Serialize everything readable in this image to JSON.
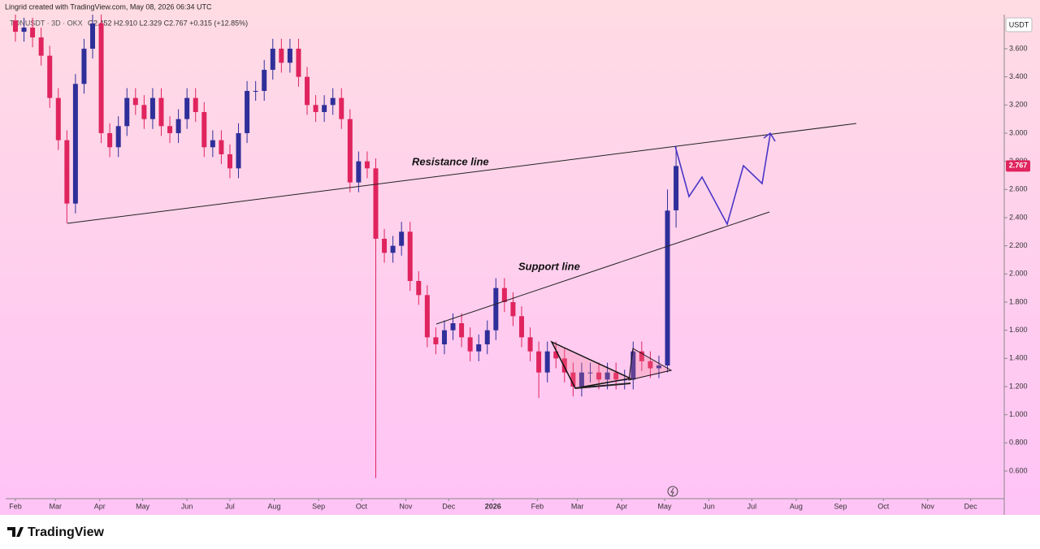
{
  "header": "Lingrid created with TradingView.com, May 08, 2026 06:34 UTC",
  "watermark": "TradingView",
  "chart_data": {
    "type": "candlestick",
    "title": "TONUSDT · 3D · OKX",
    "ohlc_label": "O2.452 H2.910 L2.329 C2.767 +0.315 (+12.85%)",
    "currency": "USDT",
    "annotations": [
      "Resistance line",
      "Support line"
    ],
    "up_color": "#2f2f9a",
    "down_color": "#e0245e",
    "grid": false,
    "x": [
      0,
      6,
      12,
      18,
      24,
      30,
      36,
      42,
      48,
      54,
      60,
      66,
      72,
      78,
      84,
      90,
      96,
      102,
      108,
      114,
      120,
      126,
      132,
      138,
      144,
      150,
      156,
      162,
      168,
      174,
      180,
      186,
      192,
      198,
      204,
      210,
      216,
      222,
      228,
      234,
      240,
      246,
      252,
      258,
      264,
      270,
      276,
      282,
      288,
      294,
      300,
      306,
      312,
      318,
      324,
      330,
      336,
      342,
      348,
      354,
      360,
      366,
      372,
      378,
      384,
      390,
      396,
      402,
      408,
      414,
      420,
      426,
      432,
      438,
      444,
      450,
      456,
      462
    ],
    "open": [
      3.8,
      3.72,
      3.75,
      3.68,
      3.55,
      3.25,
      2.95,
      2.5,
      3.35,
      3.6,
      3.78,
      3.0,
      2.9,
      3.05,
      3.25,
      3.2,
      3.1,
      3.25,
      3.05,
      3.0,
      3.1,
      3.25,
      3.15,
      2.9,
      2.95,
      2.85,
      2.75,
      3.0,
      3.3,
      3.3,
      3.45,
      3.6,
      3.5,
      3.6,
      3.4,
      3.2,
      3.15,
      3.2,
      3.25,
      3.1,
      2.65,
      2.8,
      2.75,
      2.25,
      2.15,
      2.2,
      2.3,
      1.95,
      1.85,
      1.55,
      1.5,
      1.6,
      1.65,
      1.55,
      1.45,
      1.5,
      1.6,
      1.9,
      1.8,
      1.7,
      1.55,
      1.45,
      1.3,
      1.45,
      1.4,
      1.3,
      1.2,
      1.3,
      1.3,
      1.25,
      1.3,
      1.25,
      1.25,
      1.45,
      1.38,
      1.33,
      1.35,
      2.452
    ],
    "high": [
      3.87,
      3.82,
      3.82,
      3.75,
      3.62,
      3.32,
      3.02,
      3.42,
      3.67,
      3.85,
      3.85,
      3.07,
      3.12,
      3.32,
      3.32,
      3.27,
      3.32,
      3.32,
      3.12,
      3.17,
      3.32,
      3.32,
      3.22,
      3.02,
      3.02,
      2.92,
      3.07,
      3.37,
      3.37,
      3.52,
      3.67,
      3.67,
      3.67,
      3.67,
      3.47,
      3.27,
      3.27,
      3.32,
      3.32,
      3.17,
      2.87,
      2.87,
      2.82,
      2.32,
      2.27,
      2.37,
      2.37,
      2.02,
      1.92,
      1.62,
      1.67,
      1.72,
      1.72,
      1.62,
      1.57,
      1.67,
      1.97,
      1.97,
      1.87,
      1.77,
      1.62,
      1.52,
      1.52,
      1.52,
      1.47,
      1.37,
      1.37,
      1.37,
      1.37,
      1.37,
      1.37,
      1.32,
      1.52,
      1.52,
      1.45,
      1.42,
      2.6,
      2.91
    ],
    "low": [
      3.65,
      3.65,
      3.61,
      3.48,
      3.18,
      2.88,
      2.36,
      2.43,
      3.28,
      3.53,
      2.93,
      2.83,
      2.83,
      2.98,
      3.13,
      3.03,
      3.03,
      2.98,
      2.93,
      2.93,
      3.03,
      3.08,
      2.83,
      2.83,
      2.78,
      2.68,
      2.68,
      2.93,
      3.23,
      3.23,
      3.38,
      3.43,
      3.43,
      3.33,
      3.13,
      3.08,
      3.08,
      3.13,
      3.03,
      2.58,
      2.58,
      2.68,
      0.55,
      2.08,
      2.08,
      2.13,
      1.88,
      1.78,
      1.48,
      1.43,
      1.43,
      1.53,
      1.48,
      1.38,
      1.38,
      1.43,
      1.53,
      1.73,
      1.63,
      1.48,
      1.38,
      1.12,
      1.23,
      1.33,
      1.23,
      1.13,
      1.13,
      1.23,
      1.18,
      1.18,
      1.18,
      1.18,
      1.18,
      1.31,
      1.26,
      1.26,
      1.3,
      2.329
    ],
    "close": [
      3.72,
      3.75,
      3.68,
      3.55,
      3.25,
      2.95,
      2.5,
      3.35,
      3.6,
      3.78,
      3.0,
      2.9,
      3.05,
      3.25,
      3.2,
      3.1,
      3.25,
      3.05,
      3.0,
      3.1,
      3.25,
      3.15,
      2.9,
      2.95,
      2.85,
      2.75,
      3.0,
      3.3,
      3.3,
      3.45,
      3.6,
      3.5,
      3.6,
      3.4,
      3.2,
      3.15,
      3.2,
      3.25,
      3.1,
      2.65,
      2.8,
      2.75,
      2.25,
      2.15,
      2.2,
      2.3,
      1.95,
      1.85,
      1.55,
      1.5,
      1.6,
      1.65,
      1.55,
      1.45,
      1.5,
      1.6,
      1.9,
      1.8,
      1.7,
      1.55,
      1.45,
      1.3,
      1.45,
      1.4,
      1.3,
      1.2,
      1.3,
      1.3,
      1.25,
      1.3,
      1.25,
      1.25,
      1.45,
      1.38,
      1.33,
      1.35,
      2.45,
      2.767
    ],
    "xlim": [
      -6.8,
      691.5
    ],
    "xticks": [
      {
        "value": 0,
        "label": "Feb"
      },
      {
        "value": 28,
        "label": "Mar"
      },
      {
        "value": 59,
        "label": "Apr"
      },
      {
        "value": 89,
        "label": "May"
      },
      {
        "value": 120,
        "label": "Jun"
      },
      {
        "value": 150,
        "label": "Jul"
      },
      {
        "value": 181,
        "label": "Aug"
      },
      {
        "value": 212,
        "label": "Sep"
      },
      {
        "value": 242,
        "label": "Oct"
      },
      {
        "value": 273,
        "label": "Nov"
      },
      {
        "value": 303,
        "label": "Dec"
      },
      {
        "value": 334,
        "label": "2026"
      },
      {
        "value": 365,
        "label": "Feb"
      },
      {
        "value": 393,
        "label": "Mar"
      },
      {
        "value": 424,
        "label": "Apr"
      },
      {
        "value": 454,
        "label": "May"
      },
      {
        "value": 485,
        "label": "Jun"
      },
      {
        "value": 515,
        "label": "Jul"
      },
      {
        "value": 546,
        "label": "Aug"
      },
      {
        "value": 577,
        "label": "Sep"
      },
      {
        "value": 607,
        "label": "Oct"
      },
      {
        "value": 638,
        "label": "Nov"
      },
      {
        "value": 668,
        "label": "Dec"
      }
    ],
    "ylim": [
      0.404,
      3.842
    ],
    "yticks": [
      {
        "value": 0.6,
        "label": "0.600"
      },
      {
        "value": 0.8,
        "label": "0.800"
      },
      {
        "value": 1,
        "label": "1.000"
      },
      {
        "value": 1.2,
        "label": "1.200"
      },
      {
        "value": 1.4,
        "label": "1.400"
      },
      {
        "value": 1.6,
        "label": "1.600"
      },
      {
        "value": 1.8,
        "label": "1.800"
      },
      {
        "value": 2,
        "label": "2.000"
      },
      {
        "value": 2.2,
        "label": "2.200"
      },
      {
        "value": 2.4,
        "label": "2.400"
      },
      {
        "value": 2.6,
        "label": "2.600"
      },
      {
        "value": 2.8,
        "label": "2.800"
      },
      {
        "value": 3,
        "label": "3.000"
      },
      {
        "value": 3.2,
        "label": "3.200"
      },
      {
        "value": 3.4,
        "label": "3.400"
      },
      {
        "value": 3.6,
        "label": "3.600"
      }
    ]
  }
}
